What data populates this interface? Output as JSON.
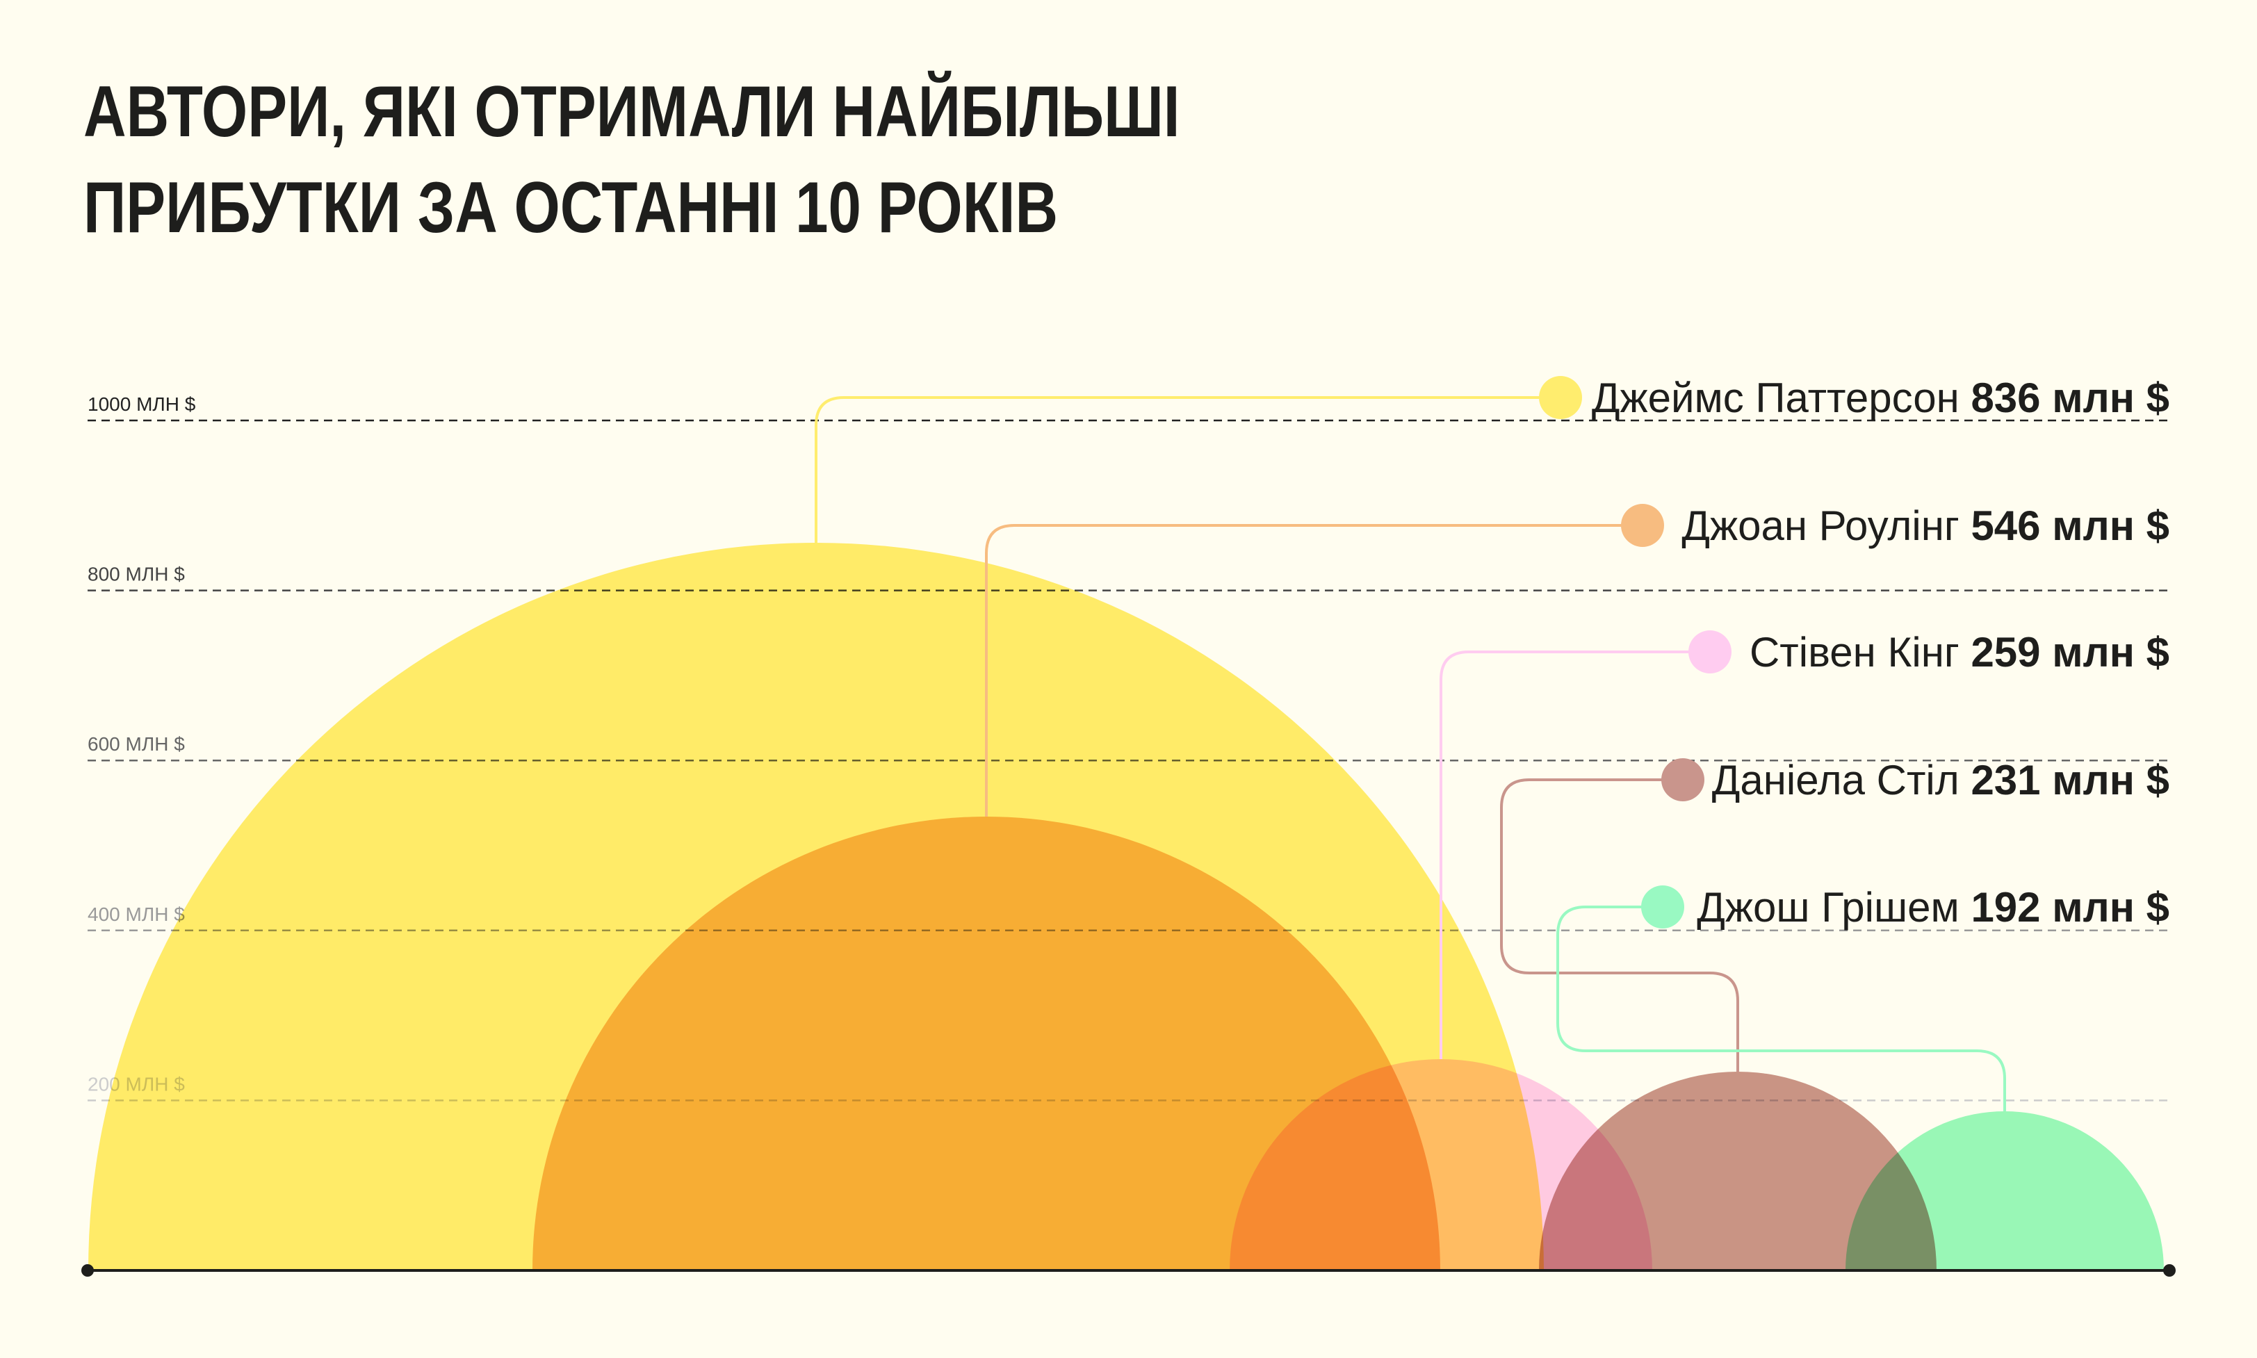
{
  "title_lines": [
    "АВТОРИ, ЯКІ ОТРИМАЛИ НАЙБІЛЬШІ",
    "ПРИБУТКИ ЗА ОСТАННІ 10 РОКІВ"
  ],
  "chart_data": {
    "type": "semicircle-bubble",
    "title": "АВТОРИ, ЯКІ ОТРИМАЛИ НАЙБІЛЬШІ ПРИБУТКИ ЗА ОСТАННІ 10 РОКІВ",
    "ylabel": "млн $",
    "ylim": [
      0,
      1000
    ],
    "grid": true,
    "yticks": [
      {
        "value": 1000,
        "label": "1000 МЛН $"
      },
      {
        "value": 800,
        "label": "800 МЛН $"
      },
      {
        "value": 600,
        "label": "600 МЛН $"
      },
      {
        "value": 400,
        "label": "400 МЛН $"
      },
      {
        "value": 200,
        "label": "200 МЛН $"
      }
    ],
    "series": [
      {
        "name": "Джеймс Паттерсон",
        "value": 836,
        "value_label": "836 млн $",
        "color": "#FFED6E"
      },
      {
        "name": "Джоан Роулінг",
        "value": 546,
        "value_label": "546 млн $",
        "color": "#F7BC80"
      },
      {
        "name": "Стівен Кінг",
        "value": 259,
        "value_label": "259 млн $",
        "color": "#FFCCF0"
      },
      {
        "name": "Даніела Стіл",
        "value": 231,
        "value_label": "231 млн $",
        "color": "#C9958C"
      },
      {
        "name": "Джош Грішем",
        "value": 192,
        "value_label": "192 млн $",
        "color": "#99F9C2"
      }
    ]
  }
}
